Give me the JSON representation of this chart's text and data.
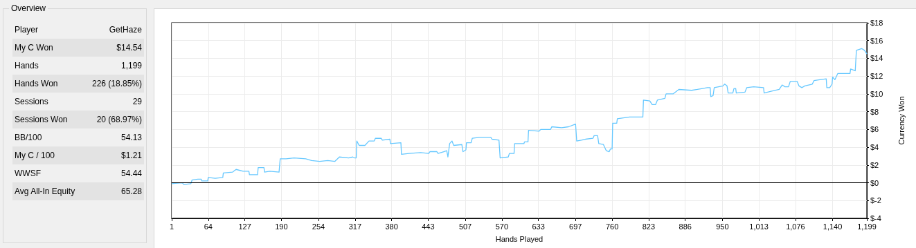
{
  "chart_data": [
    {
      "type": "other",
      "title": "Overview",
      "annotations": [
        "Player",
        "GetHaze",
        "My C Won",
        "$14.54",
        "Hands",
        "1,199",
        "Hands Won",
        "226 (18.85%)",
        "Sessions",
        "29",
        "Sessions Won",
        "20 (68.97%)",
        "BB/100",
        "54.13",
        "My C / 100",
        "$1.21",
        "WWSF",
        "54.44",
        "Avg All-In Equity",
        "65.28"
      ]
    },
    {
      "type": "line",
      "xlabel": "Hands Played",
      "ylabel": "Currency Won",
      "xlim": [
        1,
        1199
      ],
      "xticks": [
        1,
        64,
        127,
        190,
        254,
        317,
        380,
        443,
        507,
        570,
        633,
        697,
        760,
        823,
        886,
        950,
        {
          "value": 1013,
          "label": "1,013"
        },
        {
          "value": 1076,
          "label": "1,076"
        },
        {
          "value": 1140,
          "label": "1,140"
        },
        {
          "value": 1199,
          "label": "1,199"
        }
      ],
      "ylim": [
        -4,
        18
      ],
      "yticks": [
        {
          "value": -4,
          "label": "$-4"
        },
        {
          "value": -2,
          "label": "$-2"
        },
        {
          "value": 0,
          "label": "$0"
        },
        {
          "value": 2,
          "label": "$2"
        },
        {
          "value": 4,
          "label": "$4"
        },
        {
          "value": 6,
          "label": "$6"
        },
        {
          "value": 8,
          "label": "$8"
        },
        {
          "value": 10,
          "label": "$10"
        },
        {
          "value": 12,
          "label": "$12"
        },
        {
          "value": 14,
          "label": "$14"
        },
        {
          "value": 16,
          "label": "$16"
        },
        {
          "value": 18,
          "label": "$18"
        }
      ],
      "grid": true,
      "marker": "none",
      "line_style": "solid",
      "ref_lines": [
        {
          "axis": "y",
          "value": 0,
          "color": "#000000"
        }
      ],
      "series": [
        {
          "color": "#66c8ff",
          "x": [
            1,
            19,
            22,
            34,
            36,
            46,
            52,
            53,
            63,
            64,
            76,
            89,
            90,
            106,
            112,
            124,
            134,
            135,
            149,
            150,
            160,
            161,
            170,
            186,
            188,
            198,
            212,
            232,
            242,
            256,
            270,
            282,
            290,
            306,
            313,
            316,
            319,
            320,
            324,
            334,
            341,
            350,
            352,
            362,
            364,
            377,
            378,
            396,
            397,
            410,
            430,
            444,
            446,
            458,
            460,
            470,
            475,
            477,
            480,
            484,
            487,
            501,
            503,
            508,
            509,
            517,
            519,
            531,
            551,
            553,
            565,
            567,
            581,
            583,
            591,
            592,
            608,
            609,
            615,
            616,
            634,
            637,
            654,
            656,
            673,
            685,
            697,
            699,
            707,
            714,
            727,
            729,
            735,
            737,
            745,
            750,
            755,
            757,
            760,
            761,
            768,
            769,
            790,
            800,
            813,
            814,
            825,
            829,
            835,
            838,
            851,
            853,
            865,
            875,
            897,
            907,
            924,
            929,
            930,
            934,
            936,
            951,
            954,
            958,
            960,
            968,
            970,
            973,
            974,
            989,
            992,
            1004,
            1021,
            1022,
            1034,
            1048,
            1053,
            1058,
            1064,
            1067,
            1079,
            1082,
            1087,
            1092,
            1105,
            1108,
            1118,
            1129,
            1130,
            1135,
            1139,
            1140,
            1144,
            1149,
            1163,
            1170,
            1171,
            1179,
            1181,
            1190,
            1195,
            1199
          ],
          "values": [
            -0.1,
            0.0,
            -0.2,
            -0.1,
            0.3,
            0.4,
            0.4,
            0.2,
            0.2,
            0.6,
            0.5,
            0.6,
            1.1,
            1.2,
            1.5,
            1.3,
            1.3,
            0.9,
            0.9,
            1.7,
            1.7,
            1.2,
            1.3,
            1.2,
            2.7,
            2.7,
            2.8,
            2.7,
            2.5,
            2.4,
            2.5,
            2.4,
            2.9,
            2.8,
            2.9,
            2.8,
            2.8,
            4.7,
            4.2,
            4.2,
            4.7,
            4.7,
            5.0,
            5.0,
            4.8,
            4.9,
            4.4,
            4.5,
            3.2,
            3.3,
            3.4,
            3.3,
            3.5,
            3.5,
            3.3,
            3.5,
            3.6,
            2.9,
            4.4,
            4.7,
            4.2,
            4.3,
            3.5,
            3.7,
            4.5,
            4.5,
            5.0,
            5.1,
            5.1,
            4.9,
            4.8,
            2.8,
            2.9,
            3.3,
            3.3,
            4.4,
            4.4,
            4.6,
            4.6,
            5.9,
            5.8,
            6.0,
            6.0,
            6.3,
            6.2,
            6.3,
            6.6,
            4.7,
            4.8,
            4.9,
            5.0,
            5.3,
            5.3,
            4.4,
            4.3,
            3.6,
            3.5,
            3.8,
            3.8,
            6.7,
            6.7,
            7.2,
            7.4,
            7.4,
            7.4,
            9.3,
            9.2,
            8.8,
            8.8,
            9.3,
            9.5,
            10.0,
            10.0,
            10.5,
            10.4,
            10.5,
            10.7,
            10.7,
            9.7,
            9.8,
            10.7,
            10.9,
            11.1,
            10.9,
            10.1,
            10.1,
            10.6,
            10.6,
            10.1,
            10.2,
            10.7,
            10.8,
            10.7,
            10.1,
            10.3,
            10.5,
            11.0,
            10.8,
            10.8,
            11.4,
            11.4,
            10.9,
            10.7,
            10.9,
            11.1,
            11.5,
            11.6,
            11.7,
            10.7,
            10.7,
            11.1,
            11.9,
            11.6,
            12.3,
            12.3,
            12.3,
            12.8,
            12.6,
            14.9,
            15.1,
            14.9,
            14.5
          ]
        }
      ]
    }
  ]
}
